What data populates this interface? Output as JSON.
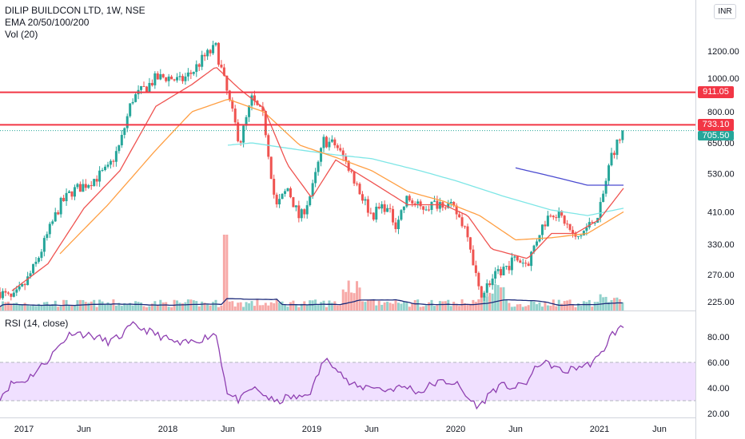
{
  "legend": {
    "title": "DILIP BUILDCON LTD, 1W, NSE",
    "ema": "EMA 20/50/100/200",
    "vol": "Vol (20)",
    "rsi": "RSI (14, close)"
  },
  "currency": "INR",
  "badges": {
    "level_high": "911.05",
    "level_low": "733.10",
    "last_price": "705.50"
  },
  "colors": {
    "candle_up": "#26a69a",
    "candle_down": "#ef5350",
    "ema20": "#ef5350",
    "ema50": "#ff9f43",
    "ema100": "#7ee6e6",
    "ema200": "#4a4ad0",
    "hline": "#f23645",
    "rsi_line": "#8e3fb1",
    "rsi_band": "#f0e0ff",
    "vol_ma": "#1c2a7a"
  },
  "chart_data": [
    {
      "type": "candlestick",
      "y_scale": "log",
      "y_ticks": [
        "1200.00",
        "1000.00",
        "800.00",
        "650.00",
        "530.00",
        "410.00",
        "330.00",
        "270.00",
        "225.00"
      ],
      "x_ticks": [
        "2017",
        "Jun",
        "2018",
        "Jun",
        "2019",
        "Jun",
        "2020",
        "Jun",
        "2021",
        "Jun"
      ],
      "horizontal_levels": [
        911.05,
        733.1
      ],
      "last_price": 705.5,
      "close_path": [
        [
          "2016-11",
          240
        ],
        [
          "2016-12",
          228
        ],
        [
          "2017-01",
          250
        ],
        [
          "2017-02",
          290
        ],
        [
          "2017-03",
          355
        ],
        [
          "2017-04",
          430
        ],
        [
          "2017-05",
          470
        ],
        [
          "2017-06",
          490
        ],
        [
          "2017-07",
          515
        ],
        [
          "2017-08",
          545
        ],
        [
          "2017-09",
          640
        ],
        [
          "2017-10",
          870
        ],
        [
          "2017-11",
          930
        ],
        [
          "2017-12",
          1000
        ],
        [
          "2018-01",
          1010
        ],
        [
          "2018-02",
          980
        ],
        [
          "2018-03",
          1040
        ],
        [
          "2018-04",
          1150
        ],
        [
          "2018-05",
          1230
        ],
        [
          "2018-06",
          890
        ],
        [
          "2018-07",
          650
        ],
        [
          "2018-08",
          870
        ],
        [
          "2018-09",
          770
        ],
        [
          "2018-10",
          420
        ],
        [
          "2018-11",
          480
        ],
        [
          "2018-12",
          390
        ],
        [
          "2019-01",
          470
        ],
        [
          "2019-02",
          660
        ],
        [
          "2019-03",
          640
        ],
        [
          "2019-04",
          560
        ],
        [
          "2019-05",
          470
        ],
        [
          "2019-06",
          400
        ],
        [
          "2019-07",
          430
        ],
        [
          "2019-08",
          380
        ],
        [
          "2019-09",
          450
        ],
        [
          "2019-10",
          420
        ],
        [
          "2019-11",
          430
        ],
        [
          "2019-12",
          440
        ],
        [
          "2020-01",
          410
        ],
        [
          "2020-02",
          360
        ],
        [
          "2020-03",
          235
        ],
        [
          "2020-04",
          260
        ],
        [
          "2020-05",
          280
        ],
        [
          "2020-06",
          300
        ],
        [
          "2020-07",
          290
        ],
        [
          "2020-08",
          360
        ],
        [
          "2020-09",
          415
        ],
        [
          "2020-10",
          390
        ],
        [
          "2020-11",
          340
        ],
        [
          "2020-12",
          370
        ],
        [
          "2021-01",
          410
        ],
        [
          "2021-02",
          600
        ],
        [
          "2021-03",
          705
        ]
      ],
      "ema20": [
        [
          "2016-12",
          242
        ],
        [
          "2017-03",
          290
        ],
        [
          "2017-06",
          420
        ],
        [
          "2017-09",
          540
        ],
        [
          "2017-12",
          830
        ],
        [
          "2018-03",
          960
        ],
        [
          "2018-05",
          1080
        ],
        [
          "2018-07",
          930
        ],
        [
          "2018-09",
          820
        ],
        [
          "2018-11",
          560
        ],
        [
          "2019-01",
          450
        ],
        [
          "2019-03",
          580
        ],
        [
          "2019-06",
          500
        ],
        [
          "2019-09",
          430
        ],
        [
          "2019-12",
          430
        ],
        [
          "2020-02",
          400
        ],
        [
          "2020-04",
          320
        ],
        [
          "2020-07",
          300
        ],
        [
          "2020-09",
          355
        ],
        [
          "2020-11",
          355
        ],
        [
          "2021-01",
          390
        ],
        [
          "2021-03",
          480
        ]
      ],
      "ema50": [
        [
          "2017-04",
          310
        ],
        [
          "2017-08",
          430
        ],
        [
          "2017-12",
          620
        ],
        [
          "2018-03",
          800
        ],
        [
          "2018-06",
          870
        ],
        [
          "2018-09",
          800
        ],
        [
          "2018-12",
          640
        ],
        [
          "2019-03",
          590
        ],
        [
          "2019-06",
          540
        ],
        [
          "2019-09",
          470
        ],
        [
          "2019-12",
          440
        ],
        [
          "2020-03",
          400
        ],
        [
          "2020-06",
          340
        ],
        [
          "2020-09",
          345
        ],
        [
          "2020-12",
          355
        ],
        [
          "2021-03",
          410
        ]
      ],
      "ema100": [
        [
          "2018-06",
          640
        ],
        [
          "2018-08",
          650
        ],
        [
          "2018-12",
          620
        ],
        [
          "2019-03",
          600
        ],
        [
          "2019-06",
          585
        ],
        [
          "2019-10",
          540
        ],
        [
          "2020-01",
          505
        ],
        [
          "2020-05",
          455
        ],
        [
          "2020-09",
          415
        ],
        [
          "2020-12",
          400
        ],
        [
          "2021-03",
          420
        ]
      ],
      "ema200": [
        [
          "2020-06",
          550
        ],
        [
          "2020-09",
          520
        ],
        [
          "2020-12",
          490
        ],
        [
          "2021-03",
          490
        ]
      ]
    },
    {
      "type": "rsi",
      "y_ticks": [
        "80.00",
        "60.00",
        "40.00",
        "20.00"
      ],
      "band": [
        30,
        60
      ],
      "values": [
        [
          "2016-11",
          33
        ],
        [
          "2016-12",
          44
        ],
        [
          "2017-01",
          45
        ],
        [
          "2017-02",
          53
        ],
        [
          "2017-03",
          62
        ],
        [
          "2017-04",
          74
        ],
        [
          "2017-05",
          84
        ],
        [
          "2017-06",
          82
        ],
        [
          "2017-07",
          80
        ],
        [
          "2017-08",
          76
        ],
        [
          "2017-09",
          80
        ],
        [
          "2017-10",
          89
        ],
        [
          "2017-11",
          86
        ],
        [
          "2017-12",
          82
        ],
        [
          "2018-01",
          78
        ],
        [
          "2018-02",
          74
        ],
        [
          "2018-03",
          76
        ],
        [
          "2018-04",
          79
        ],
        [
          "2018-05",
          83
        ],
        [
          "2018-06",
          35
        ],
        [
          "2018-07",
          30
        ],
        [
          "2018-08",
          40
        ],
        [
          "2018-09",
          35
        ],
        [
          "2018-10",
          28
        ],
        [
          "2018-11",
          33
        ],
        [
          "2018-12",
          32
        ],
        [
          "2019-01",
          38
        ],
        [
          "2019-02",
          62
        ],
        [
          "2019-03",
          58
        ],
        [
          "2019-04",
          44
        ],
        [
          "2019-05",
          40
        ],
        [
          "2019-06",
          42
        ],
        [
          "2019-07",
          38
        ],
        [
          "2019-08",
          40
        ],
        [
          "2019-09",
          41
        ],
        [
          "2019-10",
          36
        ],
        [
          "2019-11",
          43
        ],
        [
          "2019-12",
          45
        ],
        [
          "2020-01",
          44
        ],
        [
          "2020-02",
          32
        ],
        [
          "2020-03",
          25
        ],
        [
          "2020-04",
          38
        ],
        [
          "2020-05",
          42
        ],
        [
          "2020-06",
          40
        ],
        [
          "2020-07",
          45
        ],
        [
          "2020-08",
          60
        ],
        [
          "2020-09",
          58
        ],
        [
          "2020-10",
          52
        ],
        [
          "2020-11",
          56
        ],
        [
          "2020-12",
          58
        ],
        [
          "2021-01",
          64
        ],
        [
          "2021-02",
          82
        ],
        [
          "2021-03",
          88
        ]
      ]
    }
  ]
}
